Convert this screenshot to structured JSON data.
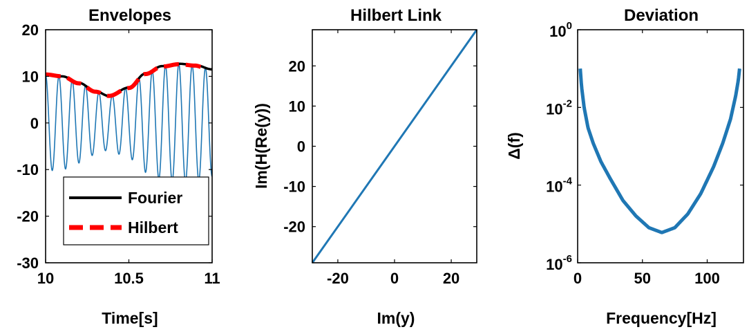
{
  "colors": {
    "signal": "#1f77b4",
    "fourier": "#000000",
    "hilbert": "#ff0000",
    "deviation": "#1f77b4"
  },
  "chart_data": [
    {
      "type": "line",
      "title": "Envelopes",
      "xlabel": "Time[s]",
      "ylabel": "",
      "xlim": [
        10,
        11
      ],
      "ylim": [
        -30,
        20
      ],
      "xticks": [
        10,
        10.5,
        11
      ],
      "xtick_labels": [
        "10",
        "10.5",
        "11"
      ],
      "yticks": [
        -30,
        -20,
        -10,
        0,
        10,
        20
      ],
      "ytick_labels": [
        "-30",
        "-20",
        "-10",
        "0",
        "10",
        "20"
      ],
      "grid": false,
      "legend_position": "bottom",
      "legend": [
        "Fourier",
        "Hilbert"
      ],
      "series": [
        {
          "name": "",
          "description_points": "oscillating signal, about 12 cycles across 10–11 s, amplitude following the envelope",
          "x": [
            10.0,
            10.1,
            10.2,
            10.3,
            10.38,
            10.5,
            10.6,
            10.7,
            10.8,
            10.9,
            11.0
          ],
          "y_envelope": [
            10.3,
            10.0,
            8.6,
            6.8,
            5.8,
            7.6,
            10.6,
            12.2,
            12.7,
            12.4,
            11.5
          ],
          "cycles": 12.5
        },
        {
          "name": "Fourier",
          "x": [
            10.0,
            10.1,
            10.2,
            10.3,
            10.38,
            10.5,
            10.6,
            10.7,
            10.8,
            10.9,
            11.0
          ],
          "y": [
            10.3,
            10.0,
            8.6,
            6.8,
            5.8,
            7.6,
            10.6,
            12.2,
            12.7,
            12.4,
            11.5
          ]
        },
        {
          "name": "Hilbert",
          "x": [
            10.0,
            10.1,
            10.2,
            10.3,
            10.38,
            10.5,
            10.6,
            10.7,
            10.8,
            10.9,
            10.95
          ],
          "y": [
            10.4,
            10.0,
            8.5,
            6.7,
            5.8,
            7.5,
            10.5,
            12.1,
            12.6,
            12.3,
            11.9
          ]
        }
      ]
    },
    {
      "type": "line",
      "title": "Hilbert Link",
      "xlabel": "Im(y)",
      "ylabel": "Im(H(Re(y))",
      "xlim": [
        -29,
        29
      ],
      "ylim": [
        -29,
        29
      ],
      "xticks": [
        -20,
        0,
        20
      ],
      "xtick_labels": [
        "-20",
        "0",
        "20"
      ],
      "yticks": [
        -20,
        -10,
        0,
        10,
        20
      ],
      "ytick_labels": [
        "-20",
        "-10",
        "0",
        "10",
        "20"
      ],
      "grid": false,
      "series": [
        {
          "name": "",
          "x": [
            -29,
            29
          ],
          "y": [
            -29,
            29
          ]
        }
      ]
    },
    {
      "type": "line",
      "title": "Deviation",
      "xlabel": "Frequency[Hz]",
      "ylabel": "Δ(f)",
      "xlim": [
        0,
        128
      ],
      "ylim": [
        1e-06,
        1
      ],
      "yscale": "log",
      "xticks": [
        0,
        50,
        100
      ],
      "xtick_labels": [
        "0",
        "50",
        "100"
      ],
      "yticks": [
        1e-06,
        0.0001,
        0.01,
        1
      ],
      "ytick_labels": [
        {
          "base": "10",
          "exp": "-6"
        },
        {
          "base": "10",
          "exp": "-4"
        },
        {
          "base": "10",
          "exp": "-2"
        },
        {
          "base": "10",
          "exp": "0"
        }
      ],
      "grid": false,
      "series": [
        {
          "name": "",
          "x": [
            2,
            3,
            5,
            8,
            12,
            18,
            25,
            35,
            45,
            55,
            65,
            75,
            85,
            95,
            105,
            112,
            118,
            122,
            124,
            125
          ],
          "y": [
            0.1,
            0.035,
            0.01,
            0.003,
            0.0012,
            0.0004,
            0.00015,
            4e-05,
            1.6e-05,
            8e-06,
            6e-06,
            8e-06,
            1.8e-05,
            6e-05,
            0.0003,
            0.0012,
            0.005,
            0.02,
            0.05,
            0.1
          ]
        }
      ]
    }
  ]
}
